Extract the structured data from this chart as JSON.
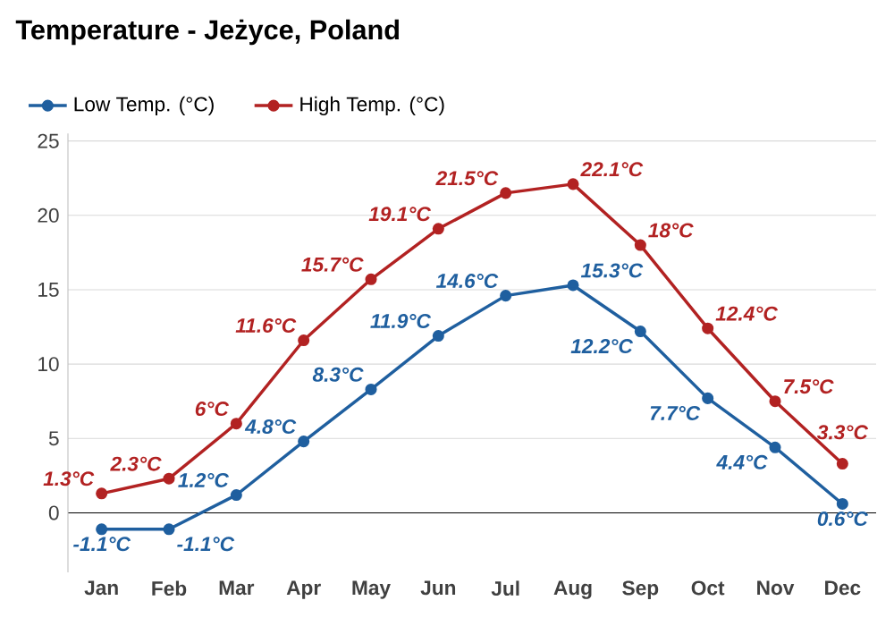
{
  "chart_data": {
    "type": "line",
    "title": "Temperature - Jeżyce, Poland",
    "categories": [
      "Jan",
      "Feb",
      "Mar",
      "Apr",
      "May",
      "Jun",
      "Jul",
      "Aug",
      "Sep",
      "Oct",
      "Nov",
      "Dec"
    ],
    "series": [
      {
        "name": "Low Temp. (°C)",
        "color": "#1f5f9f",
        "values": [
          -1.1,
          -1.1,
          1.2,
          4.8,
          8.3,
          11.9,
          14.6,
          15.3,
          12.2,
          7.7,
          4.4,
          0.6
        ],
        "value_labels": [
          "-1.1°C",
          "-1.1°C",
          "1.2°C",
          "4.8°C",
          "8.3°C",
          "11.9°C",
          "14.6°C",
          "15.3°C",
          "12.2°C",
          "7.7°C",
          "4.4°C",
          "0.6°C"
        ]
      },
      {
        "name": "High Temp. (°C)",
        "color": "#b22222",
        "values": [
          1.3,
          2.3,
          6,
          11.6,
          15.7,
          19.1,
          21.5,
          22.1,
          18,
          12.4,
          7.5,
          3.3
        ],
        "value_labels": [
          "1.3°C",
          "2.3°C",
          "6°C",
          "11.6°C",
          "15.7°C",
          "19.1°C",
          "21.5°C",
          "22.1°C",
          "18°C",
          "12.4°C",
          "7.5°C",
          "3.3°C"
        ]
      }
    ],
    "ylim": [
      -4,
      25.5
    ],
    "yticks": [
      0,
      5,
      10,
      15,
      20,
      25
    ],
    "grid": "y",
    "legend": "top left",
    "marker": "circle",
    "line_style": "solid",
    "ref_lines": [
      {
        "axis": "y",
        "value": 0,
        "color": "#000000"
      }
    ]
  }
}
